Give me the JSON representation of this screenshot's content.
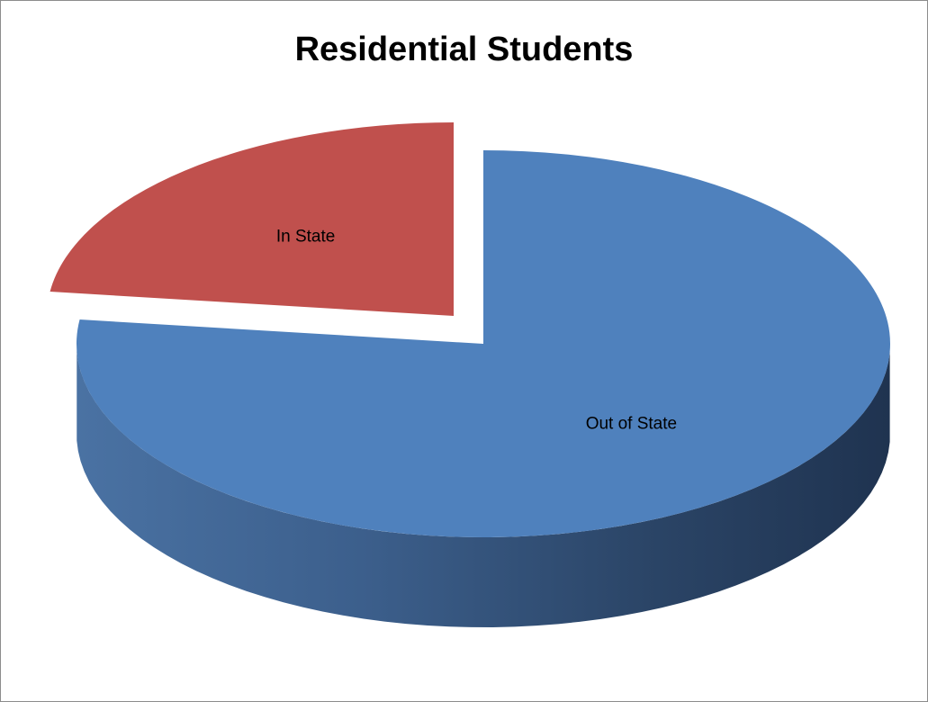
{
  "chart_data": {
    "type": "pie",
    "title": "Residential Students",
    "style": "3d-exploded",
    "legend": "none",
    "slices": [
      {
        "label": "Out of State",
        "value": 77,
        "color": "#4f81bd"
      },
      {
        "label": "In State",
        "value": 23,
        "color": "#c0504d"
      }
    ]
  }
}
